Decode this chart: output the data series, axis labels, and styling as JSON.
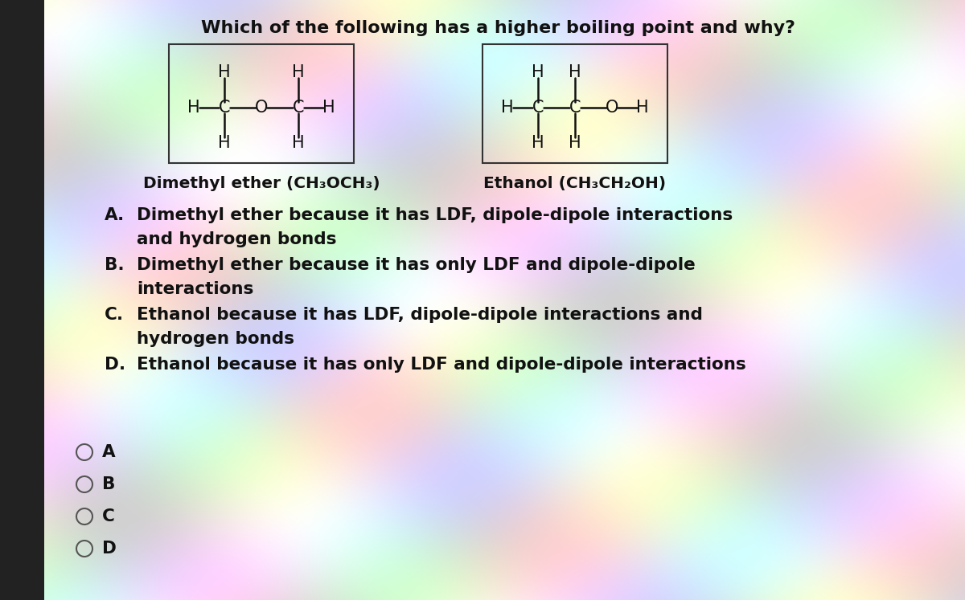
{
  "title": "Which of the following has a higher boiling point and why?",
  "title_fontsize": 16,
  "bg_color": "#c8c8c8",
  "text_color": "#111111",
  "dimethyl_label": "Dimethyl ether (CH₃OCH₃)",
  "ethanol_label": "Ethanol (CH₃CH₂OH)",
  "option_A_line1": "Dimethyl ether because it has LDF, dipole-dipole interactions",
  "option_A_line2": "and hydrogen bonds",
  "option_B_line1": "Dimethyl ether because it has only LDF and dipole-dipole",
  "option_B_line2": "interactions",
  "option_C_line1": "Ethanol because it has LDF, dipole-dipole interactions and",
  "option_C_line2": "hydrogen bonds",
  "option_D_line1": "Ethanol because it has only LDF and dipole-dipole interactions",
  "radio_labels": [
    "A",
    "B",
    "C",
    "D"
  ],
  "left_bar_color": "#222222",
  "left_bar_width": 55
}
